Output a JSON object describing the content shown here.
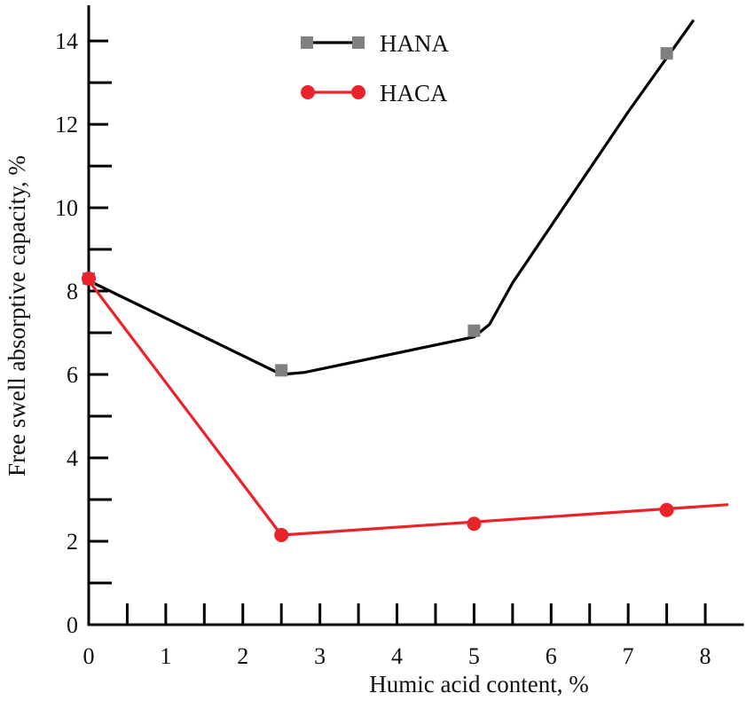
{
  "chart_data": {
    "type": "scatter",
    "xlabel": "Humic acid content, %",
    "ylabel": "Free swell absorptive capacity, %",
    "xlim": [
      0,
      8.5
    ],
    "ylim": [
      0,
      14.8
    ],
    "x_ticks": [
      0,
      1,
      2,
      3,
      4,
      5,
      6,
      7,
      8
    ],
    "x_tick_labels": [
      "0",
      "1",
      "2",
      "3",
      "4",
      "5",
      "6",
      "7",
      "8"
    ],
    "y_ticks": [
      0,
      2,
      4,
      6,
      8,
      10,
      12,
      14
    ],
    "y_tick_labels": [
      "0",
      "2",
      "4",
      "6",
      "8",
      "10",
      "12",
      "14"
    ],
    "legend_position": "top-center",
    "series": [
      {
        "name": "HANA",
        "color": "#000000",
        "marker": "square",
        "marker_color": "#808080",
        "x": [
          0,
          2.5,
          5,
          7.5
        ],
        "y": [
          8.3,
          6.1,
          7.05,
          13.7
        ],
        "fit_x": [
          0,
          2.5,
          2.8,
          5.0,
          5.2,
          5.5,
          7.0,
          7.85
        ],
        "fit_y": [
          8.25,
          6.0,
          6.05,
          6.9,
          7.2,
          8.2,
          12.3,
          14.5
        ]
      },
      {
        "name": "HACA",
        "color": "#e8232a",
        "marker": "circle",
        "marker_color": "#e8232a",
        "x": [
          0,
          2.5,
          5,
          7.5
        ],
        "y": [
          8.3,
          2.15,
          2.42,
          2.75
        ],
        "fit_x": [
          0,
          2.5,
          8.3
        ],
        "fit_y": [
          8.25,
          2.15,
          2.88
        ]
      }
    ]
  }
}
